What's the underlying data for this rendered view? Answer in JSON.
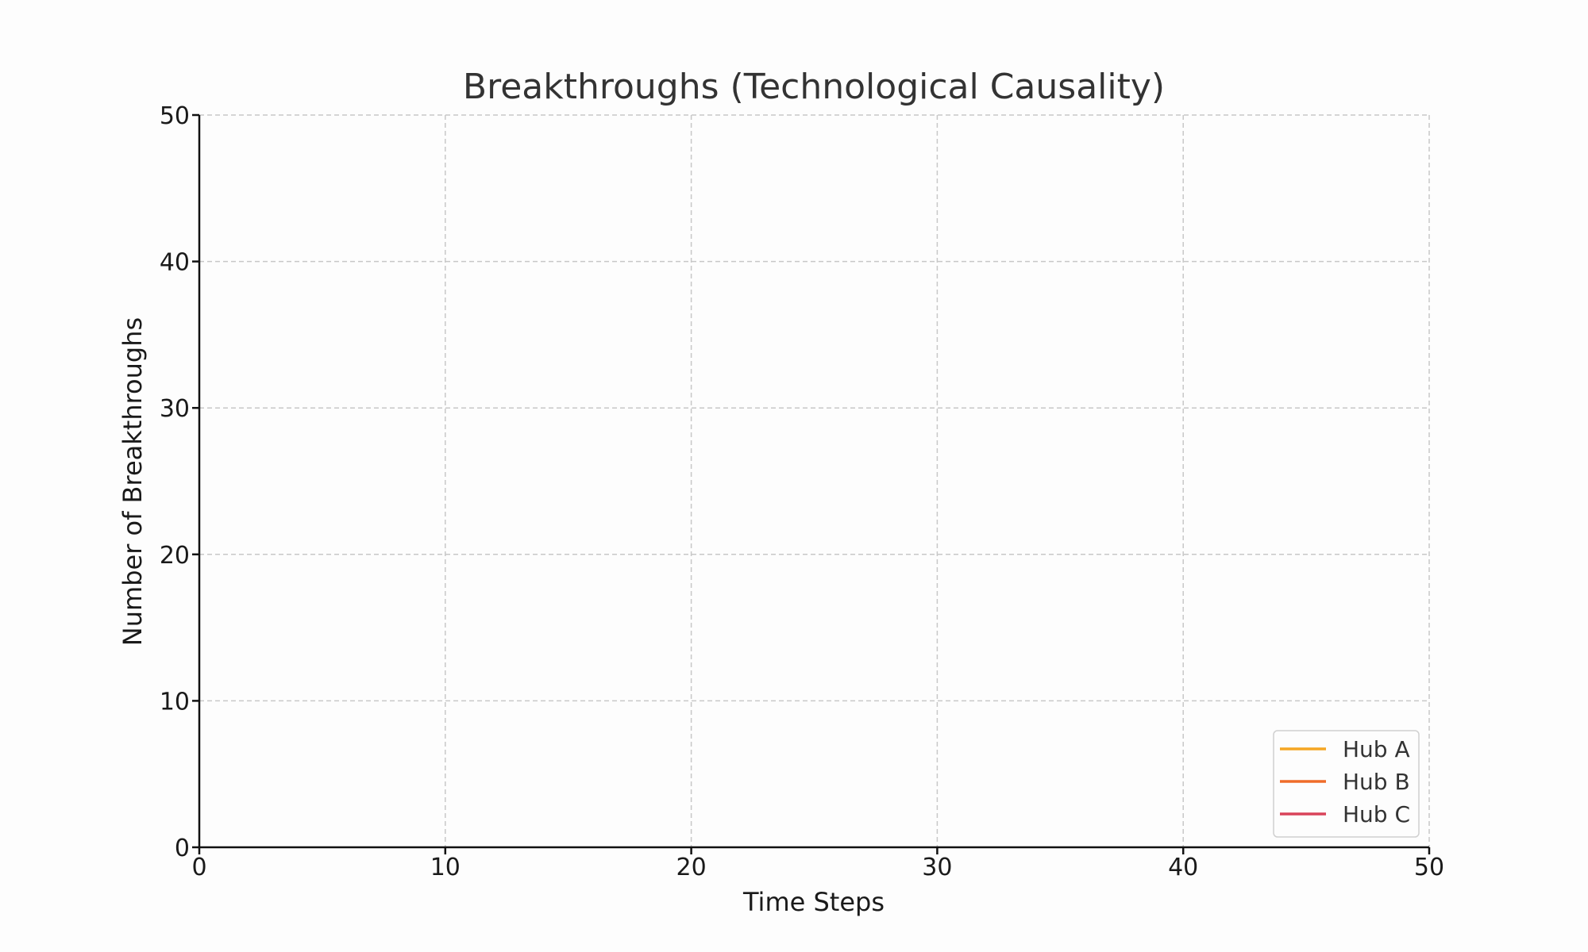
{
  "chart_data": {
    "type": "line",
    "title": "Breakthroughs (Technological Causality)",
    "xlabel": "Time Steps",
    "ylabel": "Number of Breakthroughs",
    "xlim": [
      0,
      50
    ],
    "ylim": [
      0,
      50
    ],
    "x_ticks": [
      "0",
      "10",
      "20",
      "30",
      "40",
      "50"
    ],
    "y_ticks": [
      "0",
      "10",
      "20",
      "30",
      "40",
      "50"
    ],
    "grid": true,
    "legend_position": "lower-right",
    "series": [
      {
        "name": "Hub A",
        "color": "#f5a623",
        "x": [],
        "values": []
      },
      {
        "name": "Hub B",
        "color": "#ef6c2a",
        "x": [],
        "values": []
      },
      {
        "name": "Hub C",
        "color": "#d9435a",
        "x": [],
        "values": []
      }
    ]
  }
}
